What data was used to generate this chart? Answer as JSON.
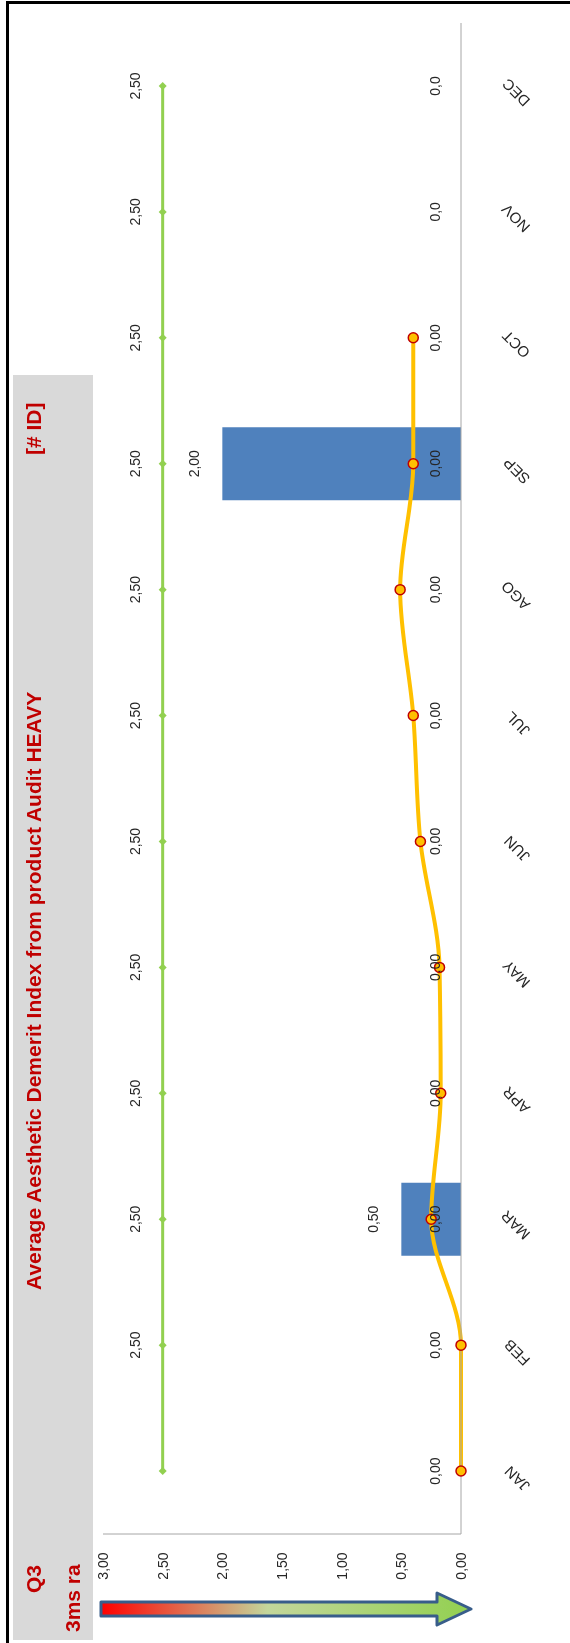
{
  "chart_data": {
    "type": "bar",
    "orientation": "horizontal",
    "title": "Average Aesthetic Demerit Index from product Audit  HEAVY",
    "annotations": [
      "[# ID]",
      "Q3",
      "3ms ra",
      "0,0",
      "0,0",
      "0,00",
      "0,00",
      "0,00",
      "0,00",
      "0,00",
      "0,00",
      "0,00",
      "0,00",
      "0,00",
      "0,00"
    ],
    "categories": [
      "DEC",
      "NOV",
      "OCT",
      "SEP",
      "AGO",
      "JUL",
      "JUN",
      "MAY",
      "APR",
      "MAR",
      "FEB",
      "JAN"
    ],
    "series": [
      {
        "type": "bar",
        "color": "#4f81bd",
        "values": [
          null,
          null,
          null,
          2.0,
          null,
          null,
          null,
          null,
          null,
          0.5,
          null,
          null
        ],
        "value_labels": [
          null,
          null,
          null,
          "2,00",
          null,
          null,
          null,
          null,
          null,
          "0,50",
          null,
          null
        ]
      },
      {
        "type": "line",
        "color": "#ffc000",
        "marker": "circle",
        "values": [
          null,
          null,
          0.4,
          0.4,
          0.51,
          0.4,
          0.34,
          0.18,
          0.17,
          0.25,
          0,
          0
        ]
      },
      {
        "type": "line",
        "color": "#92d050",
        "marker": "diamond",
        "values": [
          2.5,
          2.5,
          2.5,
          2.5,
          2.5,
          2.5,
          2.5,
          2.5,
          2.5,
          2.5,
          2.5,
          2.5
        ],
        "value_labels": [
          "2,50",
          "2,50",
          "2,50",
          "2,50",
          "2,50",
          "2,50",
          "2,50",
          "2,50",
          "2,50",
          "2,50",
          "2,50",
          null
        ]
      }
    ],
    "xlim": [
      3,
      0
    ],
    "xticks": [
      {
        "value": 3,
        "label": "3,00"
      },
      {
        "value": 2.5,
        "label": "2,50"
      },
      {
        "value": 2,
        "label": "2,00"
      },
      {
        "value": 1.5,
        "label": "1,50"
      },
      {
        "value": 1,
        "label": "1,00"
      },
      {
        "value": 0.5,
        "label": "0,50"
      },
      {
        "value": 0,
        "label": "0,00"
      }
    ],
    "grid": false,
    "legend": false
  }
}
